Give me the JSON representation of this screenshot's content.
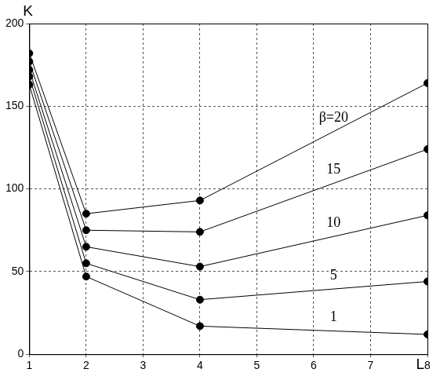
{
  "chart_data": {
    "type": "line",
    "x_label": "L",
    "y_label": "K",
    "x": [
      1,
      2,
      4,
      8
    ],
    "series": [
      {
        "name": "β=20",
        "color": "#000000",
        "marker": "circle",
        "line_style": "solid",
        "values": [
          182,
          85,
          93,
          164
        ]
      },
      {
        "name": "15",
        "color": "#000000",
        "marker": "circle",
        "line_style": "solid",
        "values": [
          177,
          75,
          74,
          124
        ]
      },
      {
        "name": "10",
        "color": "#000000",
        "marker": "circle",
        "line_style": "solid",
        "values": [
          172,
          65,
          53,
          84
        ]
      },
      {
        "name": "5",
        "color": "#000000",
        "marker": "circle",
        "line_style": "solid",
        "values": [
          168,
          55,
          33,
          44
        ]
      },
      {
        "name": "1",
        "color": "#000000",
        "marker": "circle",
        "line_style": "solid",
        "values": [
          163,
          47,
          17,
          12
        ]
      }
    ],
    "xlim": [
      1,
      8
    ],
    "xticks": [
      1,
      2,
      3,
      4,
      5,
      6,
      7,
      8
    ],
    "ylim": [
      0,
      200
    ],
    "yticks": [
      0,
      50,
      100,
      150,
      200
    ],
    "grid": true
  }
}
